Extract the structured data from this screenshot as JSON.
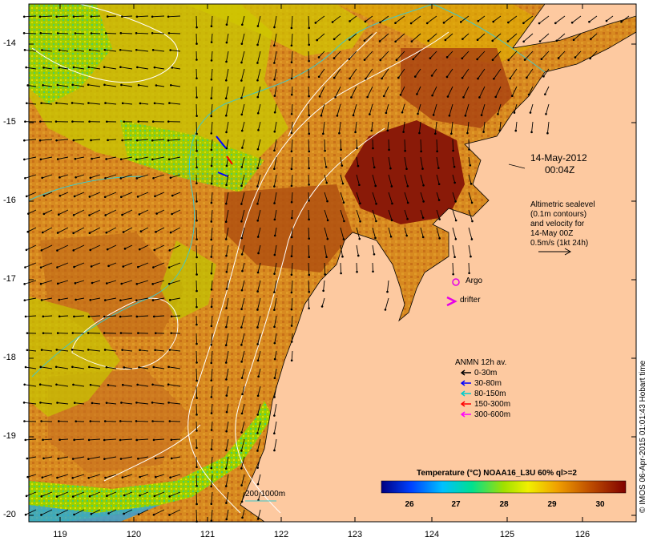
{
  "map": {
    "date_label": "14-May-2012",
    "time_label": "00:04Z",
    "altimetry_note": [
      "Altimetric sealevel",
      "(0.1m contours)",
      "and velocity for",
      "14-May 00Z",
      "0.5m/s (1kt 24h)"
    ],
    "argo_label": "Argo",
    "drifter_label": "drifter",
    "scale_label": "200  1000m",
    "credit": "© IMOS 06-Apr-2015 01:01:43 Hobart time",
    "lat_ticks": [
      "-14",
      "-15",
      "-16",
      "-17",
      "-18",
      "-19",
      "-20"
    ],
    "lon_ticks": [
      "119",
      "120",
      "121",
      "122",
      "123",
      "124",
      "125",
      "126"
    ],
    "colors": {
      "land": "#fdc9a0",
      "arrow": "#000000",
      "argo": "#e600e6",
      "drifter": "#e600e6",
      "contour": "#ffffff",
      "isobath": "#40c8c8"
    }
  },
  "legend": {
    "title": "ANMN 12h av.",
    "items": [
      {
        "label": "0-30m",
        "color": "#000000"
      },
      {
        "label": "30-80m",
        "color": "#0000ff"
      },
      {
        "label": "80-150m",
        "color": "#00cccc"
      },
      {
        "label": "150-300m",
        "color": "#ff0000"
      },
      {
        "label": "300-600m",
        "color": "#ff00ff"
      }
    ]
  },
  "colorbar": {
    "title": "Temperature (°C) NOAA16_L3U 60% ql>=2",
    "ticks": [
      "26",
      "27",
      "28",
      "29",
      "30"
    ]
  }
}
